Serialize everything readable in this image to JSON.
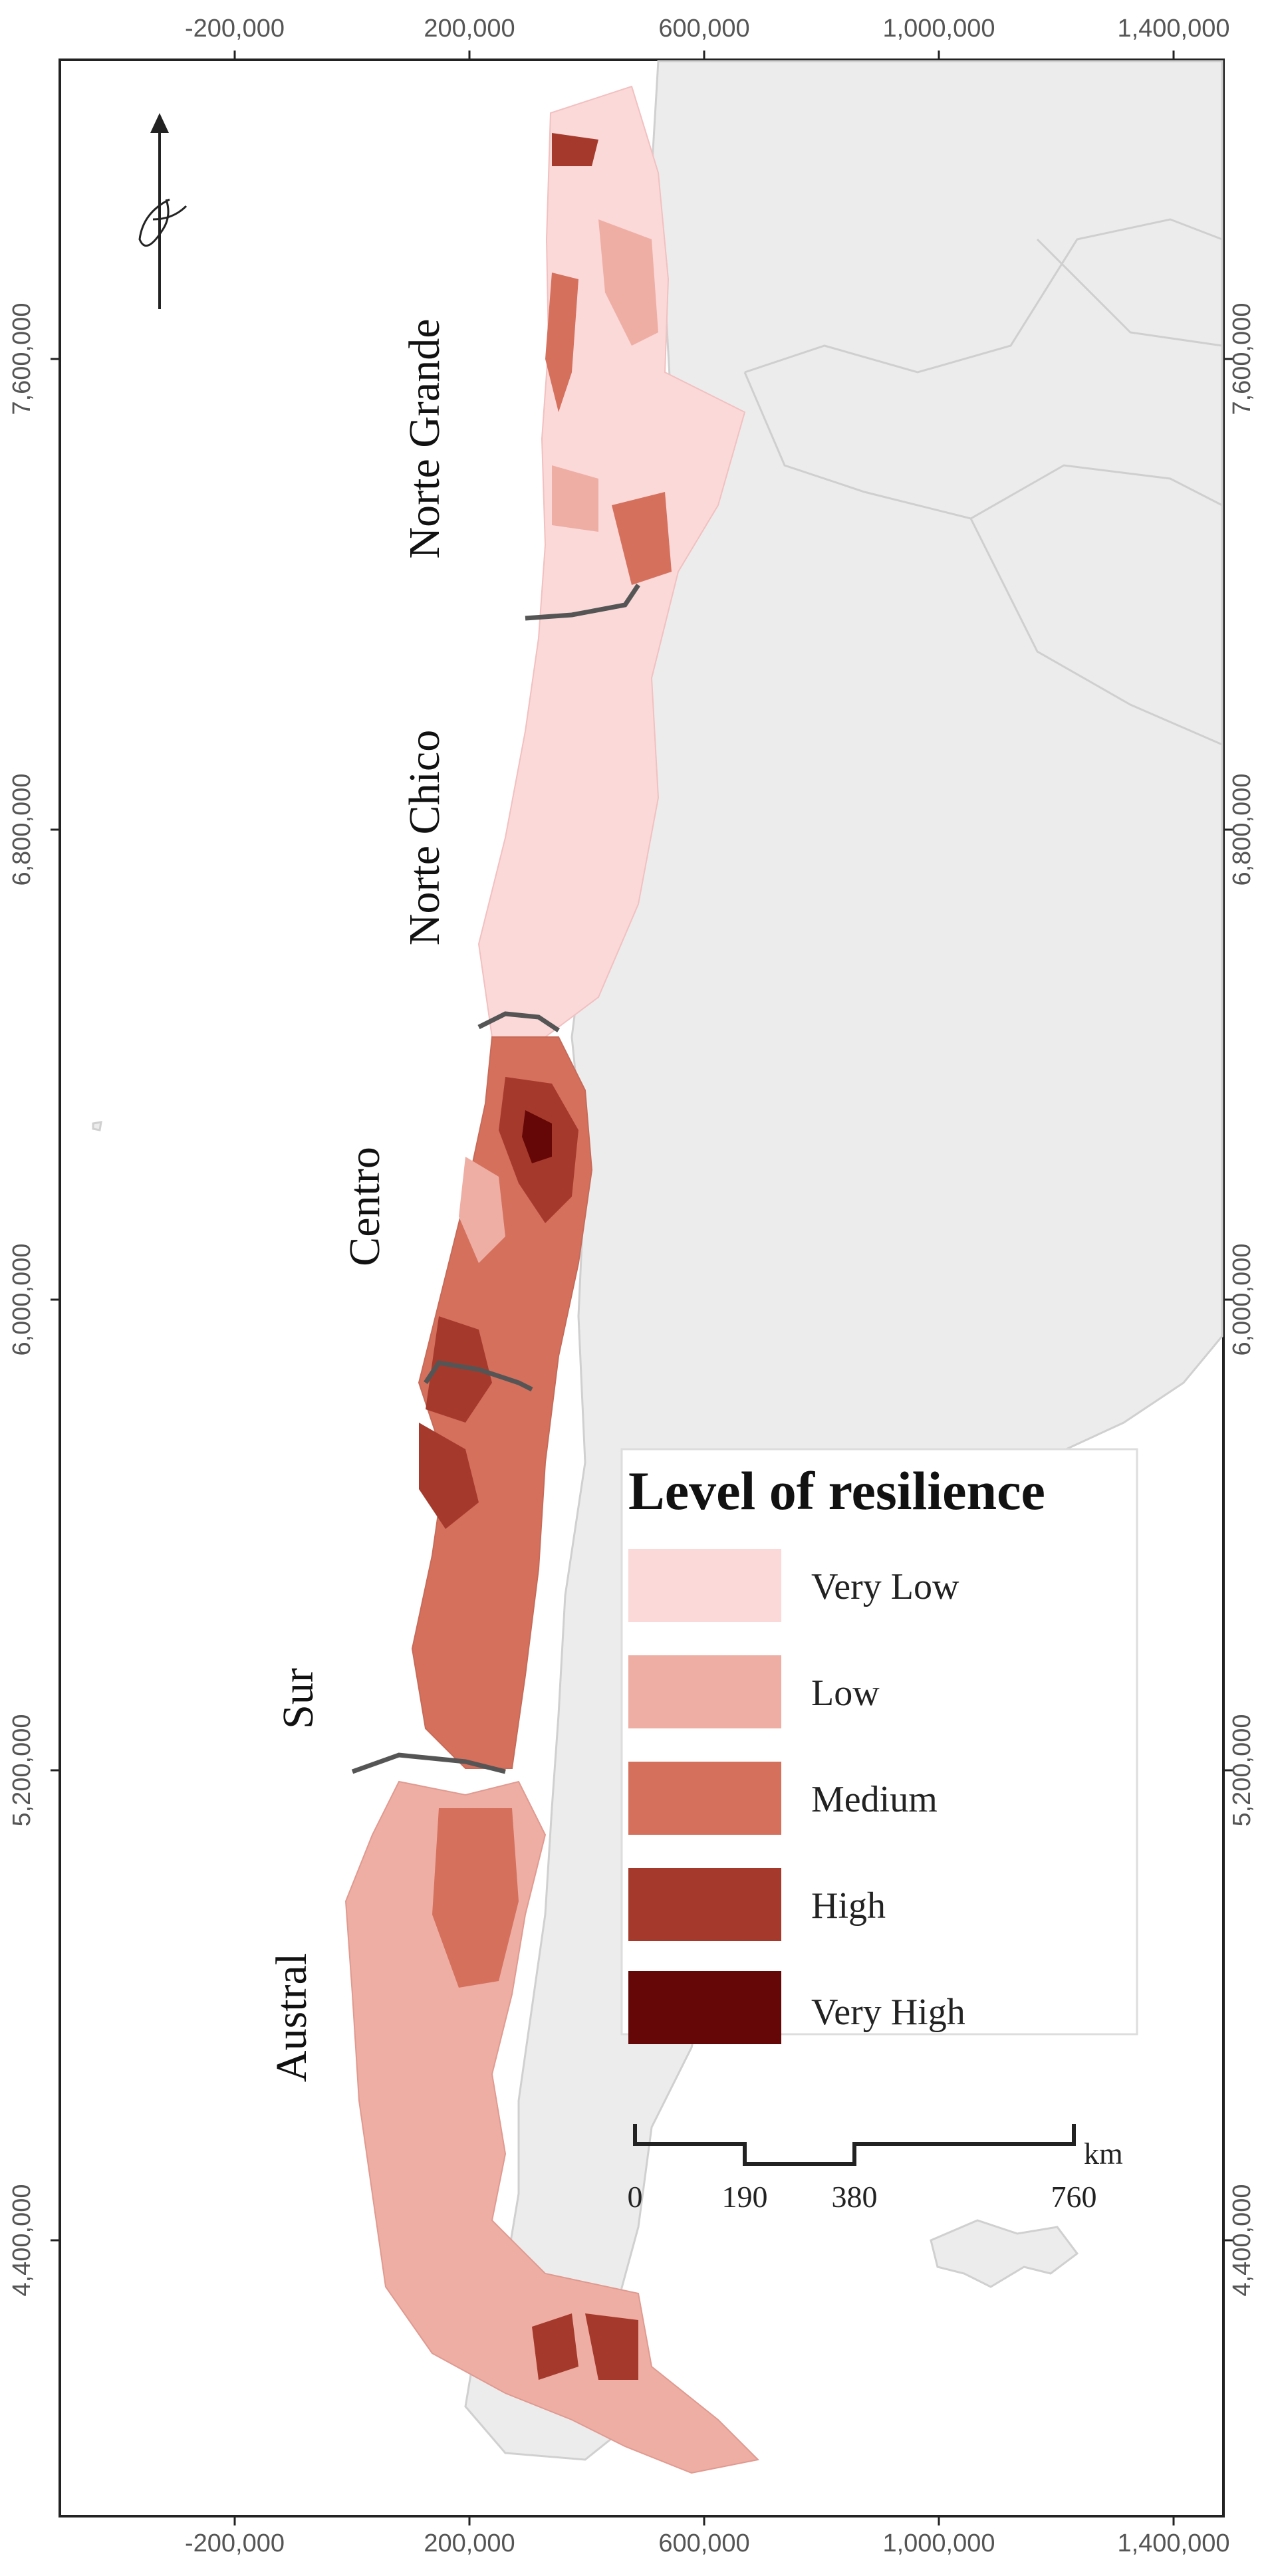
{
  "x_ticks": [
    "-200,000",
    "200,000",
    "600,000",
    "1,000,000",
    "1,400,000"
  ],
  "y_ticks": [
    "7,600,000",
    "6,800,000",
    "6,000,000",
    "5,200,000",
    "4,400,000"
  ],
  "regions": {
    "norte_grande": "Norte Grande",
    "norte_chico": "Norte Chico",
    "centro": "Centro",
    "sur": "Sur",
    "austral": "Austral"
  },
  "legend": {
    "title": "Level of resilience",
    "items": [
      {
        "label": "Very Low",
        "color": "#fbd9d9"
      },
      {
        "label": "Low",
        "color": "#eeaea4"
      },
      {
        "label": "Medium",
        "color": "#d5705d"
      },
      {
        "label": "High",
        "color": "#a53a2c"
      },
      {
        "label": "Very High",
        "color": "#650707"
      }
    ]
  },
  "scale_bar": {
    "unit": "km",
    "labels": [
      "0",
      "190",
      "380",
      "760"
    ]
  },
  "colors": {
    "land": "#ececec",
    "ocean": "#ffffff",
    "boundary": "#555555"
  }
}
